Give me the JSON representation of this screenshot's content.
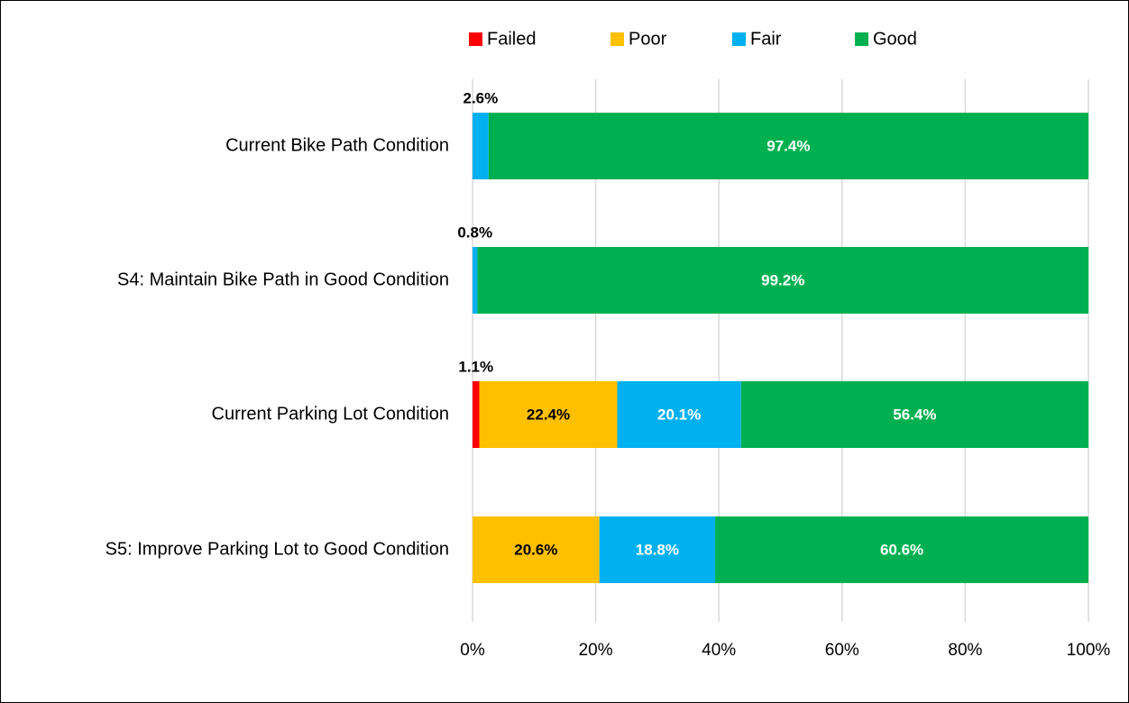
{
  "chart_data": {
    "type": "stacked-barh",
    "categories": [
      "Current Bike Path Condition",
      "S4: Maintain Bike Path in Good Condition",
      "Current Parking Lot Condition",
      "S5: Improve Parking Lot to Good Condition"
    ],
    "series": [
      {
        "name": "Failed",
        "color": "#ff0000",
        "label_color": "#000000",
        "values": [
          0,
          0,
          1.1,
          0
        ],
        "value_labels": [
          null,
          null,
          "1.1%",
          null
        ]
      },
      {
        "name": "Poor",
        "color": "#ffc000",
        "label_color": "#000000",
        "values": [
          0,
          0,
          22.4,
          20.6
        ],
        "value_labels": [
          null,
          null,
          "22.4%",
          "20.6%"
        ]
      },
      {
        "name": "Fair",
        "color": "#00b0f0",
        "label_color": "#ffffff",
        "values": [
          2.6,
          0.8,
          20.1,
          18.8
        ],
        "value_labels": [
          "2.6%",
          "0.8%",
          "20.1%",
          "18.8%"
        ]
      },
      {
        "name": "Good",
        "color": "#00b050",
        "label_color": "#ffffff",
        "values": [
          97.4,
          99.2,
          56.4,
          60.6
        ],
        "value_labels": [
          "97.4%",
          "99.2%",
          "56.4%",
          "60.6%"
        ]
      }
    ],
    "xlim": [
      0,
      100
    ],
    "xticks": [
      {
        "value": 0,
        "label": "0%"
      },
      {
        "value": 20,
        "label": "20%"
      },
      {
        "value": 40,
        "label": "40%"
      },
      {
        "value": 60,
        "label": "60%"
      },
      {
        "value": 80,
        "label": "80%"
      },
      {
        "value": 100,
        "label": "100%"
      }
    ],
    "grid": true,
    "legend": "top"
  }
}
